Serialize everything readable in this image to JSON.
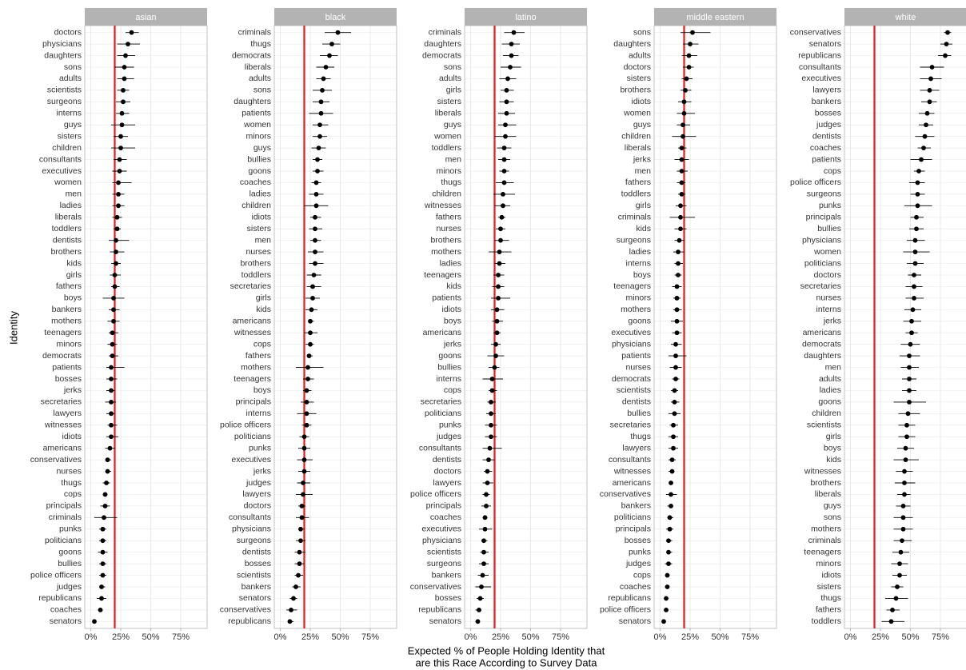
{
  "chart_data": {
    "type": "dot-errorbar",
    "y_label": "Identity",
    "x_label": [
      "Expected % of People Holding Identity that",
      "are this Race According to Survey Data"
    ],
    "xlim": [
      -5,
      97
    ],
    "xticks": [
      {
        "value": 0,
        "label": "0%"
      },
      {
        "value": 25,
        "label": "25%"
      },
      {
        "value": 50,
        "label": "50%"
      },
      {
        "value": 75,
        "label": "75%"
      }
    ],
    "ref_line": {
      "value": 20,
      "color": "#e41a1c"
    },
    "point_color": "#000000",
    "grid": true,
    "panels": [
      {
        "title": "asian",
        "categories": [
          "doctors",
          "physicians",
          "daughters",
          "sons",
          "adults",
          "scientists",
          "surgeons",
          "interns",
          "guys",
          "sisters",
          "children",
          "consultants",
          "executives",
          "women",
          "men",
          "ladies",
          "liberals",
          "toddlers",
          "dentists",
          "brothers",
          "kids",
          "girls",
          "fathers",
          "boys",
          "bankers",
          "mothers",
          "teenagers",
          "minors",
          "democrats",
          "patients",
          "bosses",
          "jerks",
          "secretaries",
          "lawyers",
          "witnesses",
          "idiots",
          "americans",
          "conservatives",
          "nurses",
          "thugs",
          "cops",
          "principals",
          "criminals",
          "punks",
          "politicians",
          "goons",
          "bullies",
          "police officers",
          "judges",
          "republicans",
          "coaches",
          "senators"
        ],
        "values": [
          34,
          31,
          29,
          28,
          28,
          27,
          27,
          26,
          26,
          25,
          25,
          24,
          24,
          23,
          23,
          23,
          22,
          22,
          21,
          21,
          21,
          20,
          20,
          19,
          19,
          19,
          18,
          18,
          18,
          17,
          17,
          17,
          17,
          17,
          17,
          17,
          16,
          14,
          14,
          13,
          12,
          12,
          11,
          10,
          10,
          10,
          10,
          10,
          9,
          9,
          8,
          3
        ],
        "lower": [
          29,
          22,
          22,
          20,
          22,
          22,
          21,
          21,
          17,
          19,
          17,
          19,
          18,
          18,
          18,
          18,
          18,
          19,
          15,
          16,
          17,
          16,
          17,
          10,
          15,
          14,
          15,
          14,
          15,
          13,
          13,
          13,
          12,
          13,
          14,
          13,
          12,
          12,
          12,
          10,
          10,
          8,
          3,
          7,
          7,
          6,
          7,
          7,
          7,
          5,
          6,
          2
        ],
        "upper": [
          40,
          41,
          37,
          36,
          36,
          32,
          33,
          32,
          37,
          31,
          37,
          30,
          30,
          34,
          28,
          28,
          26,
          25,
          32,
          28,
          25,
          25,
          24,
          28,
          24,
          24,
          23,
          22,
          23,
          28,
          22,
          20,
          21,
          20,
          22,
          23,
          20,
          17,
          17,
          16,
          14,
          16,
          22,
          13,
          13,
          14,
          13,
          13,
          12,
          13,
          10,
          4
        ]
      },
      {
        "title": "black",
        "categories": [
          "criminals",
          "thugs",
          "democrats",
          "liberals",
          "adults",
          "sons",
          "daughters",
          "patients",
          "women",
          "minors",
          "guys",
          "bullies",
          "goons",
          "coaches",
          "ladies",
          "children",
          "idiots",
          "sisters",
          "men",
          "nurses",
          "brothers",
          "toddlers",
          "secretaries",
          "girls",
          "kids",
          "americans",
          "witnesses",
          "cops",
          "fathers",
          "mothers",
          "teenagers",
          "boys",
          "principals",
          "interns",
          "police officers",
          "politicians",
          "punks",
          "executives",
          "jerks",
          "judges",
          "lawyers",
          "doctors",
          "consultants",
          "physicians",
          "surgeons",
          "dentists",
          "bosses",
          "scientists",
          "bankers",
          "senators",
          "conservatives",
          "republicans"
        ],
        "values": [
          48,
          43,
          41,
          38,
          36,
          35,
          34,
          34,
          33,
          33,
          32,
          31,
          31,
          30,
          30,
          30,
          29,
          29,
          29,
          29,
          29,
          28,
          27,
          27,
          26,
          25,
          25,
          25,
          24,
          23,
          23,
          22,
          22,
          22,
          22,
          20,
          20,
          20,
          20,
          19,
          19,
          18,
          18,
          17,
          17,
          16,
          16,
          15,
          13,
          11,
          9,
          8
        ],
        "lower": [
          37,
          35,
          33,
          30,
          30,
          27,
          27,
          24,
          27,
          27,
          26,
          27,
          27,
          26,
          24,
          20,
          25,
          24,
          25,
          23,
          24,
          22,
          22,
          21,
          21,
          23,
          20,
          21,
          22,
          13,
          19,
          19,
          17,
          14,
          18,
          16,
          15,
          14,
          15,
          14,
          13,
          15,
          13,
          15,
          13,
          12,
          12,
          12,
          10,
          8,
          5,
          6
        ],
        "upper": [
          59,
          50,
          48,
          45,
          42,
          43,
          41,
          44,
          40,
          39,
          38,
          35,
          36,
          34,
          36,
          40,
          34,
          35,
          34,
          36,
          36,
          34,
          34,
          33,
          31,
          28,
          31,
          28,
          27,
          36,
          28,
          26,
          28,
          30,
          26,
          24,
          25,
          27,
          25,
          25,
          27,
          21,
          24,
          20,
          21,
          21,
          20,
          19,
          17,
          14,
          14,
          11
        ]
      },
      {
        "title": "latino",
        "categories": [
          "criminals",
          "daughters",
          "democrats",
          "sons",
          "adults",
          "girls",
          "sisters",
          "liberals",
          "guys",
          "women",
          "toddlers",
          "men",
          "minors",
          "thugs",
          "children",
          "witnesses",
          "fathers",
          "nurses",
          "brothers",
          "mothers",
          "ladies",
          "teenagers",
          "kids",
          "patients",
          "idiots",
          "boys",
          "americans",
          "jerks",
          "goons",
          "bullies",
          "interns",
          "cops",
          "secretaries",
          "politicians",
          "punks",
          "judges",
          "consultants",
          "dentists",
          "doctors",
          "lawyers",
          "police officers",
          "principals",
          "coaches",
          "executives",
          "physicians",
          "scientists",
          "surgeons",
          "bankers",
          "conservatives",
          "bosses",
          "republicans",
          "senators"
        ],
        "values": [
          36,
          34,
          34,
          33,
          31,
          30,
          30,
          30,
          29,
          29,
          28,
          28,
          28,
          28,
          27,
          27,
          26,
          25,
          25,
          24,
          24,
          23,
          23,
          23,
          22,
          22,
          22,
          21,
          21,
          20,
          18,
          18,
          17,
          17,
          17,
          17,
          16,
          15,
          14,
          14,
          13,
          13,
          12,
          12,
          11,
          11,
          11,
          10,
          9,
          8,
          7,
          6
        ],
        "lower": [
          28,
          26,
          27,
          25,
          24,
          25,
          24,
          23,
          23,
          20,
          22,
          23,
          24,
          21,
          19,
          20,
          23,
          21,
          20,
          15,
          20,
          19,
          18,
          17,
          17,
          18,
          19,
          17,
          14,
          15,
          10,
          15,
          14,
          13,
          12,
          12,
          10,
          10,
          11,
          10,
          10,
          9,
          10,
          7,
          9,
          8,
          7,
          6,
          4,
          5,
          4,
          4
        ],
        "upper": [
          45,
          41,
          40,
          42,
          38,
          36,
          36,
          37,
          38,
          38,
          34,
          33,
          32,
          36,
          37,
          33,
          29,
          29,
          32,
          34,
          29,
          28,
          28,
          33,
          28,
          27,
          25,
          25,
          28,
          24,
          27,
          22,
          21,
          21,
          22,
          22,
          26,
          20,
          18,
          19,
          16,
          17,
          14,
          18,
          14,
          15,
          15,
          15,
          17,
          11,
          9,
          7
        ]
      },
      {
        "title": "middle eastern",
        "categories": [
          "sons",
          "daughters",
          "adults",
          "doctors",
          "sisters",
          "brothers",
          "idiots",
          "women",
          "guys",
          "children",
          "liberals",
          "jerks",
          "men",
          "fathers",
          "toddlers",
          "girls",
          "criminals",
          "kids",
          "surgeons",
          "ladies",
          "interns",
          "boys",
          "teenagers",
          "minors",
          "mothers",
          "goons",
          "executives",
          "physicians",
          "patients",
          "nurses",
          "democrats",
          "scientists",
          "dentists",
          "bullies",
          "secretaries",
          "thugs",
          "lawyers",
          "consultants",
          "witnesses",
          "americans",
          "conservatives",
          "bankers",
          "politicians",
          "principals",
          "bosses",
          "punks",
          "judges",
          "cops",
          "coaches",
          "republicans",
          "police officers",
          "senators"
        ],
        "values": [
          27,
          25,
          24,
          24,
          22,
          21,
          20,
          20,
          19,
          19,
          18,
          18,
          18,
          18,
          18,
          17,
          17,
          17,
          16,
          15,
          15,
          15,
          14,
          14,
          14,
          14,
          14,
          13,
          13,
          13,
          13,
          12,
          12,
          12,
          11,
          11,
          11,
          10,
          10,
          9,
          9,
          9,
          8,
          8,
          7,
          7,
          7,
          6,
          6,
          5,
          5,
          3
        ],
        "lower": [
          17,
          19,
          18,
          19,
          18,
          17,
          15,
          14,
          14,
          10,
          15,
          12,
          14,
          14,
          15,
          13,
          8,
          12,
          12,
          11,
          12,
          12,
          10,
          11,
          11,
          9,
          10,
          9,
          7,
          8,
          10,
          9,
          9,
          7,
          8,
          7,
          7,
          7,
          7,
          8,
          5,
          6,
          6,
          5,
          5,
          5,
          4,
          5,
          4,
          4,
          3,
          2
        ],
        "upper": [
          42,
          32,
          31,
          28,
          27,
          26,
          26,
          29,
          25,
          30,
          22,
          24,
          23,
          21,
          21,
          22,
          29,
          22,
          20,
          20,
          19,
          18,
          18,
          17,
          18,
          19,
          18,
          18,
          22,
          18,
          16,
          15,
          16,
          17,
          15,
          15,
          15,
          13,
          12,
          11,
          14,
          11,
          11,
          11,
          10,
          10,
          10,
          8,
          7,
          7,
          7,
          4
        ]
      },
      {
        "title": "white",
        "categories": [
          "conservatives",
          "senators",
          "republicans",
          "consultants",
          "executives",
          "lawyers",
          "bankers",
          "bosses",
          "judges",
          "dentists",
          "coaches",
          "patients",
          "cops",
          "police officers",
          "surgeons",
          "punks",
          "principals",
          "bullies",
          "physicians",
          "women",
          "politicians",
          "doctors",
          "secretaries",
          "nurses",
          "interns",
          "jerks",
          "americans",
          "democrats",
          "daughters",
          "men",
          "adults",
          "ladies",
          "goons",
          "children",
          "scientists",
          "girls",
          "boys",
          "kids",
          "witnesses",
          "brothers",
          "liberals",
          "guys",
          "sons",
          "mothers",
          "criminals",
          "teenagers",
          "minors",
          "idiots",
          "sisters",
          "thugs",
          "fathers",
          "toddlers"
        ],
        "values": [
          81,
          80,
          79,
          68,
          67,
          66,
          66,
          64,
          63,
          62,
          61,
          59,
          57,
          56,
          56,
          56,
          55,
          55,
          54,
          54,
          54,
          53,
          53,
          53,
          52,
          51,
          51,
          50,
          49,
          49,
          49,
          49,
          49,
          48,
          47,
          47,
          46,
          46,
          45,
          45,
          45,
          44,
          44,
          44,
          43,
          42,
          41,
          41,
          39,
          38,
          35,
          34
        ],
        "lower": [
          78,
          75,
          73,
          58,
          58,
          58,
          59,
          57,
          57,
          54,
          56,
          50,
          53,
          49,
          50,
          45,
          50,
          49,
          47,
          44,
          47,
          48,
          46,
          46,
          45,
          44,
          46,
          42,
          41,
          42,
          43,
          43,
          36,
          40,
          40,
          40,
          39,
          36,
          38,
          37,
          39,
          38,
          36,
          36,
          36,
          35,
          34,
          35,
          34,
          29,
          30,
          26
        ],
        "upper": [
          84,
          85,
          84,
          78,
          76,
          74,
          72,
          70,
          69,
          70,
          67,
          68,
          62,
          62,
          62,
          68,
          61,
          61,
          62,
          66,
          61,
          59,
          60,
          61,
          59,
          59,
          56,
          58,
          58,
          57,
          55,
          55,
          63,
          58,
          54,
          54,
          53,
          57,
          52,
          54,
          50,
          50,
          52,
          52,
          51,
          49,
          48,
          47,
          44,
          48,
          41,
          45
        ]
      }
    ]
  }
}
